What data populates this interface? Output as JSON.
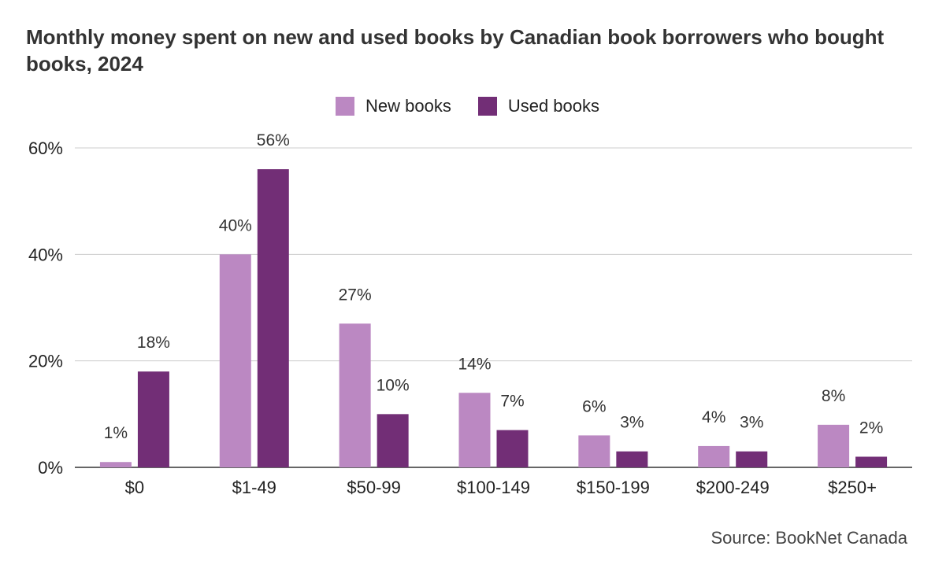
{
  "title": "Monthly money spent on new and used books by Canadian book borrowers who bought books, 2024",
  "source": "Source: BookNet Canada",
  "colors": {
    "new": "#bb88c2",
    "used": "#722e76",
    "grid": "#cccccc",
    "axis": "#333333"
  },
  "chart_data": {
    "type": "bar",
    "title": "Monthly money spent on new and used books by Canadian book borrowers who bought books, 2024",
    "xlabel": "",
    "ylabel": "",
    "ylim": [
      0,
      60
    ],
    "yticks": [
      "0%",
      "20%",
      "40%",
      "60%"
    ],
    "grid": true,
    "legend_position": "top",
    "categories": [
      "$0",
      "$1-49",
      "$50-99",
      "$100-149",
      "$150-199",
      "$200-249",
      "$250+"
    ],
    "series": [
      {
        "name": "New books",
        "values": [
          1,
          40,
          27,
          14,
          6,
          4,
          8
        ],
        "labels": [
          "1%",
          "40%",
          "27%",
          "14%",
          "6%",
          "4%",
          "8%"
        ]
      },
      {
        "name": "Used books",
        "values": [
          18,
          56,
          10,
          7,
          3,
          3,
          2
        ],
        "labels": [
          "18%",
          "56%",
          "10%",
          "7%",
          "3%",
          "3%",
          "2%"
        ]
      }
    ]
  }
}
